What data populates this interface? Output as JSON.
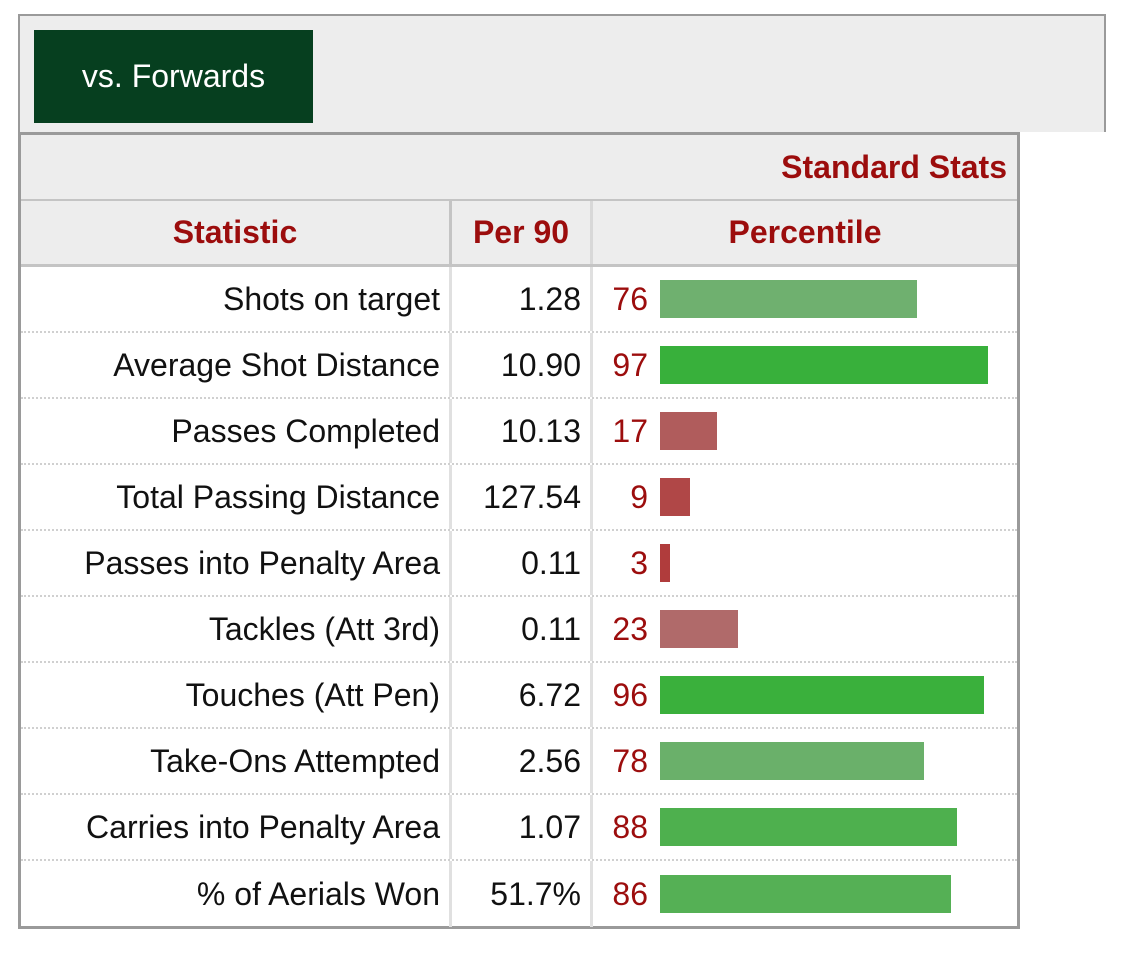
{
  "tab": {
    "label": "vs. Forwards"
  },
  "section": {
    "title": "Standard Stats"
  },
  "columns": {
    "statistic": "Statistic",
    "per90": "Per 90",
    "percentile": "Percentile"
  },
  "colors": {
    "high": "#3bb03b",
    "mid_high": "#6eb06e",
    "mid_low": "#b06060",
    "low": "#b04848"
  },
  "rows": [
    {
      "statistic": "Shots on target",
      "per90": "1.28",
      "percentile": "76",
      "pct_value": 76,
      "bar_color": "#6fb06f"
    },
    {
      "statistic": "Average Shot Distance",
      "per90": "10.90",
      "percentile": "97",
      "pct_value": 97,
      "bar_color": "#38b03b"
    },
    {
      "statistic": "Passes Completed",
      "per90": "10.13",
      "percentile": "17",
      "pct_value": 17,
      "bar_color": "#b05c5c"
    },
    {
      "statistic": "Total Passing Distance",
      "per90": "127.54",
      "percentile": "9",
      "pct_value": 9,
      "bar_color": "#b04747"
    },
    {
      "statistic": "Passes into Penalty Area",
      "per90": "0.11",
      "percentile": "3",
      "pct_value": 3,
      "bar_color": "#b03c3c"
    },
    {
      "statistic": "Tackles (Att 3rd)",
      "per90": "0.11",
      "percentile": "23",
      "pct_value": 23,
      "bar_color": "#b06a6a"
    },
    {
      "statistic": "Touches (Att Pen)",
      "per90": "6.72",
      "percentile": "96",
      "pct_value": 96,
      "bar_color": "#3ab03c"
    },
    {
      "statistic": "Take-Ons Attempted",
      "per90": "2.56",
      "percentile": "78",
      "pct_value": 78,
      "bar_color": "#6ab06a"
    },
    {
      "statistic": "Carries into Penalty Area",
      "per90": "1.07",
      "percentile": "88",
      "pct_value": 88,
      "bar_color": "#4eb04e"
    },
    {
      "statistic": "% of Aerials Won",
      "per90": "51.7%",
      "percentile": "86",
      "pct_value": 86,
      "bar_color": "#55b055"
    }
  ]
}
